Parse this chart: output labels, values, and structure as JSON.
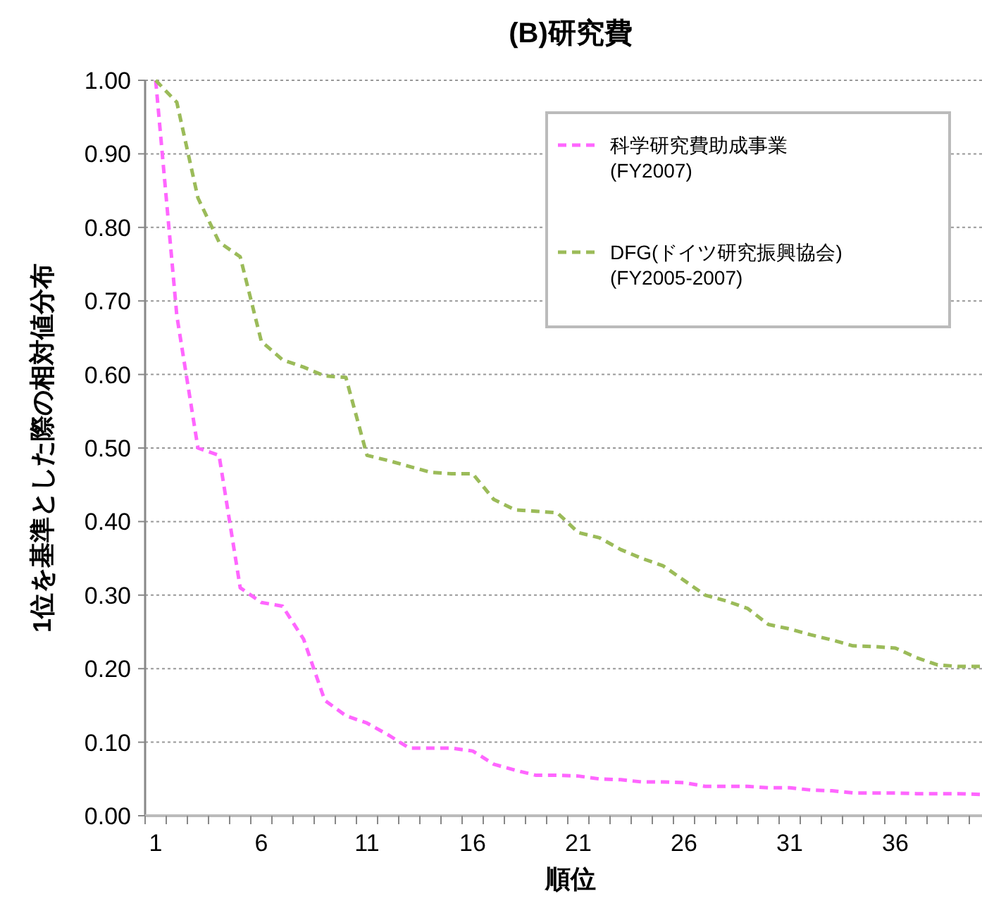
{
  "chart_data": {
    "type": "line",
    "title": "(B)研究費",
    "xlabel": "順位",
    "ylabel": "1位を基準とした際の相対値分布",
    "x": [
      1,
      2,
      3,
      4,
      5,
      6,
      7,
      8,
      9,
      10,
      11,
      12,
      13,
      14,
      15,
      16,
      17,
      18,
      19,
      20,
      21,
      22,
      23,
      24,
      25,
      26,
      27,
      28,
      29,
      30,
      31,
      32,
      33,
      34,
      35,
      36,
      37,
      38,
      39,
      40
    ],
    "series": [
      {
        "name": "科学研究費助成事業(FY2007)",
        "color": "#ff66ff",
        "values": [
          1.0,
          0.68,
          0.5,
          0.49,
          0.31,
          0.29,
          0.285,
          0.24,
          0.157,
          0.136,
          0.126,
          0.11,
          0.092,
          0.092,
          0.092,
          0.088,
          0.07,
          0.062,
          0.055,
          0.055,
          0.054,
          0.05,
          0.049,
          0.046,
          0.046,
          0.045,
          0.04,
          0.04,
          0.04,
          0.038,
          0.038,
          0.035,
          0.034,
          0.031,
          0.031,
          0.031,
          0.03,
          0.03,
          0.03,
          0.029
        ]
      },
      {
        "name": "DFG(ドイツ研究振興協会)(FY2005-2007)",
        "color": "#9bbb59",
        "values": [
          1.0,
          0.97,
          0.84,
          0.78,
          0.76,
          0.645,
          0.62,
          0.61,
          0.598,
          0.596,
          0.49,
          0.483,
          0.475,
          0.467,
          0.465,
          0.465,
          0.43,
          0.416,
          0.414,
          0.412,
          0.385,
          0.378,
          0.362,
          0.35,
          0.34,
          0.32,
          0.3,
          0.292,
          0.282,
          0.26,
          0.254,
          0.246,
          0.239,
          0.231,
          0.23,
          0.228,
          0.215,
          0.205,
          0.203,
          0.203
        ]
      }
    ],
    "xlim": [
      0.5,
      40.1
    ],
    "xticks": [
      {
        "value": 0.5,
        "label": null
      },
      1,
      {
        "value": 1.5,
        "label": null
      },
      {
        "value": 2.5,
        "label": null
      },
      {
        "value": 3.5,
        "label": null
      },
      {
        "value": 4.5,
        "label": null
      },
      {
        "value": 5.5,
        "label": null
      },
      6,
      {
        "value": 6.5,
        "label": null
      },
      {
        "value": 7.5,
        "label": null
      },
      {
        "value": 8.5,
        "label": null
      },
      {
        "value": 9.5,
        "label": null
      },
      {
        "value": 10.5,
        "label": null
      },
      11,
      {
        "value": 11.5,
        "label": null
      },
      {
        "value": 12.5,
        "label": null
      },
      {
        "value": 13.5,
        "label": null
      },
      {
        "value": 14.5,
        "label": null
      },
      {
        "value": 15.5,
        "label": null
      },
      16,
      {
        "value": 16.5,
        "label": null
      },
      {
        "value": 17.5,
        "label": null
      },
      {
        "value": 18.5,
        "label": null
      },
      {
        "value": 19.5,
        "label": null
      },
      {
        "value": 20.5,
        "label": null
      },
      21,
      {
        "value": 21.5,
        "label": null
      },
      {
        "value": 22.5,
        "label": null
      },
      {
        "value": 23.5,
        "label": null
      },
      {
        "value": 24.5,
        "label": null
      },
      {
        "value": 25.5,
        "label": null
      },
      26,
      {
        "value": 26.5,
        "label": null
      },
      {
        "value": 27.5,
        "label": null
      },
      {
        "value": 28.5,
        "label": null
      },
      {
        "value": 29.5,
        "label": null
      },
      {
        "value": 30.5,
        "label": null
      },
      31,
      {
        "value": 31.5,
        "label": null
      },
      {
        "value": 32.5,
        "label": null
      },
      {
        "value": 33.5,
        "label": null
      },
      {
        "value": 34.5,
        "label": null
      },
      {
        "value": 35.5,
        "label": null
      },
      36,
      {
        "value": 36.5,
        "label": null
      },
      {
        "value": 37.5,
        "label": null
      },
      {
        "value": 38.5,
        "label": null
      },
      {
        "value": 39.5,
        "label": null
      }
    ],
    "ylim": [
      0,
      1
    ],
    "yticks": [
      {
        "value": 0,
        "label": "0.00"
      },
      {
        "value": 0.1,
        "label": "0.10"
      },
      {
        "value": 0.2,
        "label": "0.20"
      },
      {
        "value": 0.3,
        "label": "0.30"
      },
      {
        "value": 0.4,
        "label": "0.40"
      },
      {
        "value": 0.5,
        "label": "0.50"
      },
      {
        "value": 0.6,
        "label": "0.60"
      },
      {
        "value": 0.7,
        "label": "0.70"
      },
      {
        "value": 0.8,
        "label": "0.80"
      },
      {
        "value": 0.9,
        "label": "0.90"
      },
      {
        "value": 1,
        "label": "1.00"
      }
    ],
    "grid": "y",
    "legend": "top right",
    "marker": "none",
    "line_style": "dashed"
  }
}
